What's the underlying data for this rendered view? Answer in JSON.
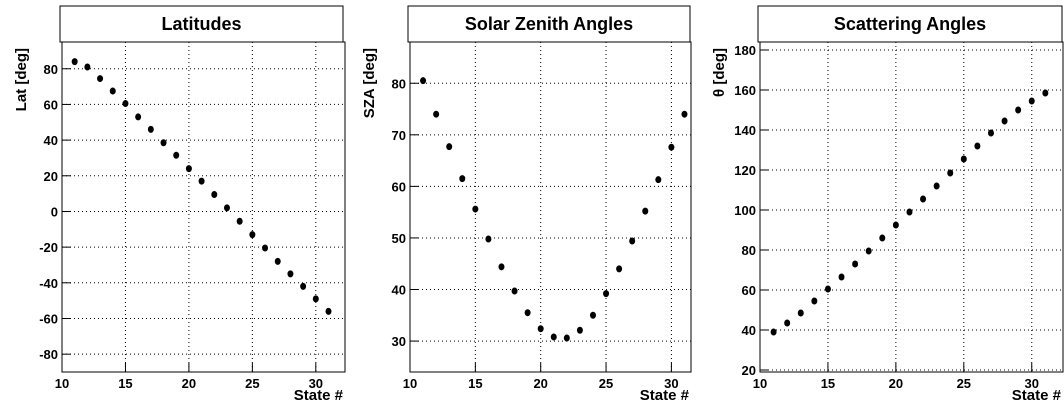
{
  "chart_data": [
    {
      "type": "scatter",
      "title": "Latitudes",
      "x_label": "State #",
      "y_label": "Lat [deg]",
      "x": [
        11,
        12,
        13,
        14,
        15,
        16,
        17,
        18,
        19,
        20,
        21,
        22,
        23,
        24,
        25,
        26,
        27,
        28,
        29,
        30,
        31
      ],
      "y": [
        84,
        81,
        74.5,
        67.5,
        60.5,
        53,
        46,
        38.5,
        31.5,
        24,
        17,
        9.5,
        2,
        -5.5,
        -13,
        -20.5,
        -28,
        -35,
        -42,
        -49,
        -56
      ],
      "xlim": [
        10,
        32.3
      ],
      "xticks": [
        10,
        15,
        20,
        25,
        30
      ],
      "ylim": [
        -90,
        95
      ],
      "yticks": [
        -80,
        -60,
        -40,
        -20,
        0,
        20,
        40,
        60,
        80
      ],
      "grid": true,
      "color": "#000000"
    },
    {
      "type": "scatter",
      "title": "Solar Zenith Angles",
      "x_label": "State #",
      "y_label": "SZA [deg]",
      "x": [
        11,
        12,
        13,
        14,
        15,
        16,
        17,
        18,
        19,
        20,
        21,
        22,
        23,
        24,
        25,
        26,
        27,
        28,
        29,
        30,
        31
      ],
      "y": [
        80.5,
        74,
        67.7,
        61.5,
        55.6,
        49.8,
        44.4,
        39.7,
        35.5,
        32.4,
        30.8,
        30.6,
        32.1,
        35,
        39.2,
        44,
        49.4,
        55.2,
        61.3,
        67.6,
        74
      ],
      "xlim": [
        10,
        31.5
      ],
      "xticks": [
        10,
        15,
        20,
        25,
        30
      ],
      "ylim": [
        24,
        88
      ],
      "yticks": [
        30,
        40,
        50,
        60,
        70,
        80
      ],
      "grid": true,
      "color": "#000000"
    },
    {
      "type": "scatter",
      "title": "Scattering Angles",
      "x_label": "State #",
      "y_label": "θ [deg]",
      "x": [
        11,
        12,
        13,
        14,
        15,
        16,
        17,
        18,
        19,
        20,
        21,
        22,
        23,
        24,
        25,
        26,
        27,
        28,
        29,
        30,
        31
      ],
      "y": [
        39,
        43.5,
        48.5,
        54.5,
        60.5,
        66.5,
        73,
        79.5,
        86,
        92.5,
        99,
        105.5,
        112,
        118.5,
        125.5,
        132,
        138.5,
        144.5,
        150,
        154.5,
        158.5
      ],
      "xlim": [
        10,
        32.3
      ],
      "xticks": [
        10,
        15,
        20,
        25,
        30
      ],
      "ylim": [
        19,
        184
      ],
      "yticks": [
        20,
        40,
        60,
        80,
        100,
        120,
        140,
        160,
        180
      ],
      "grid": true,
      "color": "#000000"
    }
  ]
}
